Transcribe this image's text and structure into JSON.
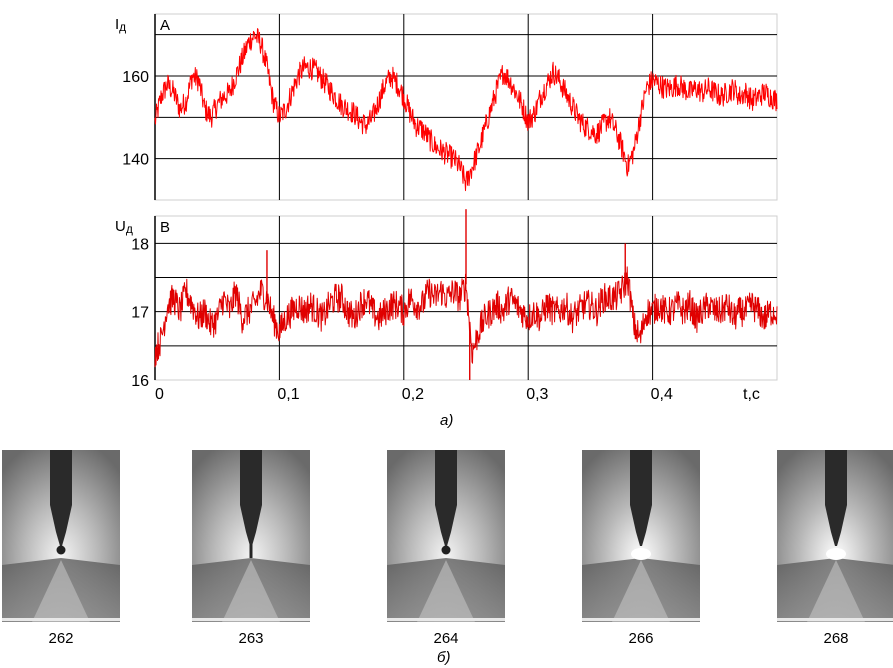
{
  "figure": {
    "panel_a_caption": "а)",
    "panel_b_caption": "б)"
  },
  "chart_data": [
    {
      "type": "line",
      "title": "",
      "ylabel": "Iд, A",
      "ylabel_symbol": "I",
      "ylabel_sub": "д",
      "ylabel_unit": "A",
      "xlim": [
        0,
        0.5
      ],
      "ylim": [
        130,
        175
      ],
      "yticks": [
        140,
        160
      ],
      "ytick_labels": [
        "140",
        "160"
      ],
      "grid": true,
      "series": [
        {
          "color": "#ff0000",
          "x": [
            0.0,
            0.005,
            0.01,
            0.015,
            0.02,
            0.025,
            0.03,
            0.035,
            0.04,
            0.045,
            0.05,
            0.055,
            0.06,
            0.065,
            0.07,
            0.075,
            0.08,
            0.085,
            0.09,
            0.095,
            0.1,
            0.105,
            0.11,
            0.115,
            0.12,
            0.125,
            0.13,
            0.135,
            0.14,
            0.145,
            0.15,
            0.155,
            0.16,
            0.165,
            0.17,
            0.175,
            0.18,
            0.185,
            0.19,
            0.195,
            0.2,
            0.205,
            0.21,
            0.215,
            0.22,
            0.225,
            0.23,
            0.235,
            0.24,
            0.245,
            0.25,
            0.255,
            0.26,
            0.265,
            0.27,
            0.275,
            0.28,
            0.285,
            0.29,
            0.295,
            0.3,
            0.305,
            0.31,
            0.315,
            0.32,
            0.325,
            0.33,
            0.335,
            0.34,
            0.345,
            0.35,
            0.355,
            0.36,
            0.365,
            0.37,
            0.375,
            0.38,
            0.385,
            0.39,
            0.395,
            0.4,
            0.405,
            0.41,
            0.415,
            0.42,
            0.425,
            0.43,
            0.435,
            0.44,
            0.445,
            0.45,
            0.455,
            0.46,
            0.465,
            0.47,
            0.475,
            0.48,
            0.485,
            0.49,
            0.495,
            0.5
          ],
          "y": [
            149,
            155,
            158,
            156,
            152,
            154,
            160,
            159,
            152,
            150,
            153,
            155,
            156,
            160,
            164,
            168,
            170,
            168,
            162,
            154,
            150,
            152,
            156,
            160,
            162,
            162,
            161,
            159,
            157,
            155,
            153,
            152,
            151,
            149,
            148,
            150,
            154,
            158,
            160,
            158,
            155,
            151,
            148,
            147,
            145,
            143,
            142,
            141,
            140,
            138,
            134,
            138,
            142,
            147,
            152,
            157,
            161,
            159,
            156,
            153,
            149,
            151,
            155,
            158,
            161,
            159,
            156,
            153,
            150,
            148,
            147,
            146,
            148,
            150,
            147,
            143,
            138,
            142,
            150,
            157,
            159,
            158,
            157,
            157,
            158,
            157,
            156,
            157,
            156,
            157,
            156,
            155,
            156,
            157,
            155,
            156,
            154,
            155,
            156,
            155,
            154
          ],
          "band": 2.8
        }
      ]
    },
    {
      "type": "line",
      "title": "",
      "ylabel": "Uд, B",
      "ylabel_symbol": "U",
      "ylabel_sub": "д",
      "ylabel_unit": "B",
      "xlabel": "t,c",
      "xlim": [
        0,
        0.5
      ],
      "ylim": [
        16,
        18.4
      ],
      "yticks": [
        16,
        17,
        18
      ],
      "ytick_labels": [
        "16",
        "17",
        "18"
      ],
      "xticks": [
        0,
        0.1,
        0.2,
        0.3,
        0.4
      ],
      "xtick_labels": [
        "0",
        "0,1",
        "0,2",
        "0,3",
        "0,4"
      ],
      "grid": true,
      "series": [
        {
          "color": "#e00000",
          "x": [
            0.0,
            0.005,
            0.01,
            0.015,
            0.02,
            0.025,
            0.03,
            0.035,
            0.04,
            0.045,
            0.05,
            0.055,
            0.06,
            0.065,
            0.07,
            0.075,
            0.08,
            0.085,
            0.09,
            0.095,
            0.1,
            0.105,
            0.11,
            0.115,
            0.12,
            0.125,
            0.13,
            0.135,
            0.14,
            0.145,
            0.15,
            0.155,
            0.16,
            0.165,
            0.17,
            0.175,
            0.18,
            0.185,
            0.19,
            0.195,
            0.2,
            0.205,
            0.21,
            0.215,
            0.22,
            0.225,
            0.23,
            0.235,
            0.24,
            0.245,
            0.25,
            0.255,
            0.26,
            0.265,
            0.27,
            0.275,
            0.28,
            0.285,
            0.29,
            0.295,
            0.3,
            0.305,
            0.31,
            0.315,
            0.32,
            0.325,
            0.33,
            0.335,
            0.34,
            0.345,
            0.35,
            0.355,
            0.36,
            0.365,
            0.37,
            0.375,
            0.38,
            0.385,
            0.39,
            0.395,
            0.4,
            0.405,
            0.41,
            0.415,
            0.42,
            0.425,
            0.43,
            0.435,
            0.44,
            0.445,
            0.45,
            0.455,
            0.46,
            0.465,
            0.47,
            0.475,
            0.48,
            0.485,
            0.49,
            0.495,
            0.5
          ],
          "y": [
            16.4,
            16.6,
            17.1,
            17.2,
            17.0,
            17.3,
            17.1,
            16.9,
            17.0,
            16.8,
            16.9,
            17.2,
            17.0,
            17.3,
            16.9,
            17.0,
            17.1,
            17.3,
            17.2,
            16.9,
            16.7,
            16.9,
            17.0,
            17.1,
            17.0,
            17.1,
            17.0,
            16.9,
            17.1,
            17.2,
            17.2,
            17.0,
            16.9,
            17.1,
            17.2,
            17.0,
            16.9,
            17.0,
            17.1,
            17.1,
            17.0,
            17.2,
            17.1,
            17.1,
            17.3,
            17.2,
            17.3,
            17.2,
            17.3,
            17.2,
            17.4,
            16.4,
            16.7,
            16.9,
            17.0,
            17.1,
            17.0,
            17.2,
            17.1,
            17.0,
            16.9,
            17.0,
            16.9,
            17.1,
            17.0,
            17.0,
            17.1,
            16.9,
            17.0,
            17.1,
            17.1,
            17.0,
            17.2,
            17.2,
            17.2,
            17.3,
            17.5,
            16.8,
            16.6,
            17.0,
            17.0,
            17.1,
            17.0,
            17.0,
            17.1,
            17.0,
            17.1,
            16.9,
            17.0,
            17.1,
            17.0,
            17.0,
            17.1,
            16.9,
            17.0,
            17.0,
            17.1,
            17.0,
            16.9,
            17.0,
            17.0
          ],
          "band": 0.22,
          "spikes": [
            {
              "x": 0.25,
              "y": 18.5
            },
            {
              "x": 0.253,
              "y": 16.0
            },
            {
              "x": 0.378,
              "y": 18.0
            },
            {
              "x": 0.09,
              "y": 17.9
            }
          ]
        }
      ]
    }
  ],
  "frames": [
    {
      "label": "262",
      "arc": "ball"
    },
    {
      "label": "263",
      "arc": "thin"
    },
    {
      "label": "264",
      "arc": "ball"
    },
    {
      "label": "266",
      "arc": "bright"
    },
    {
      "label": "268",
      "arc": "bright"
    }
  ]
}
